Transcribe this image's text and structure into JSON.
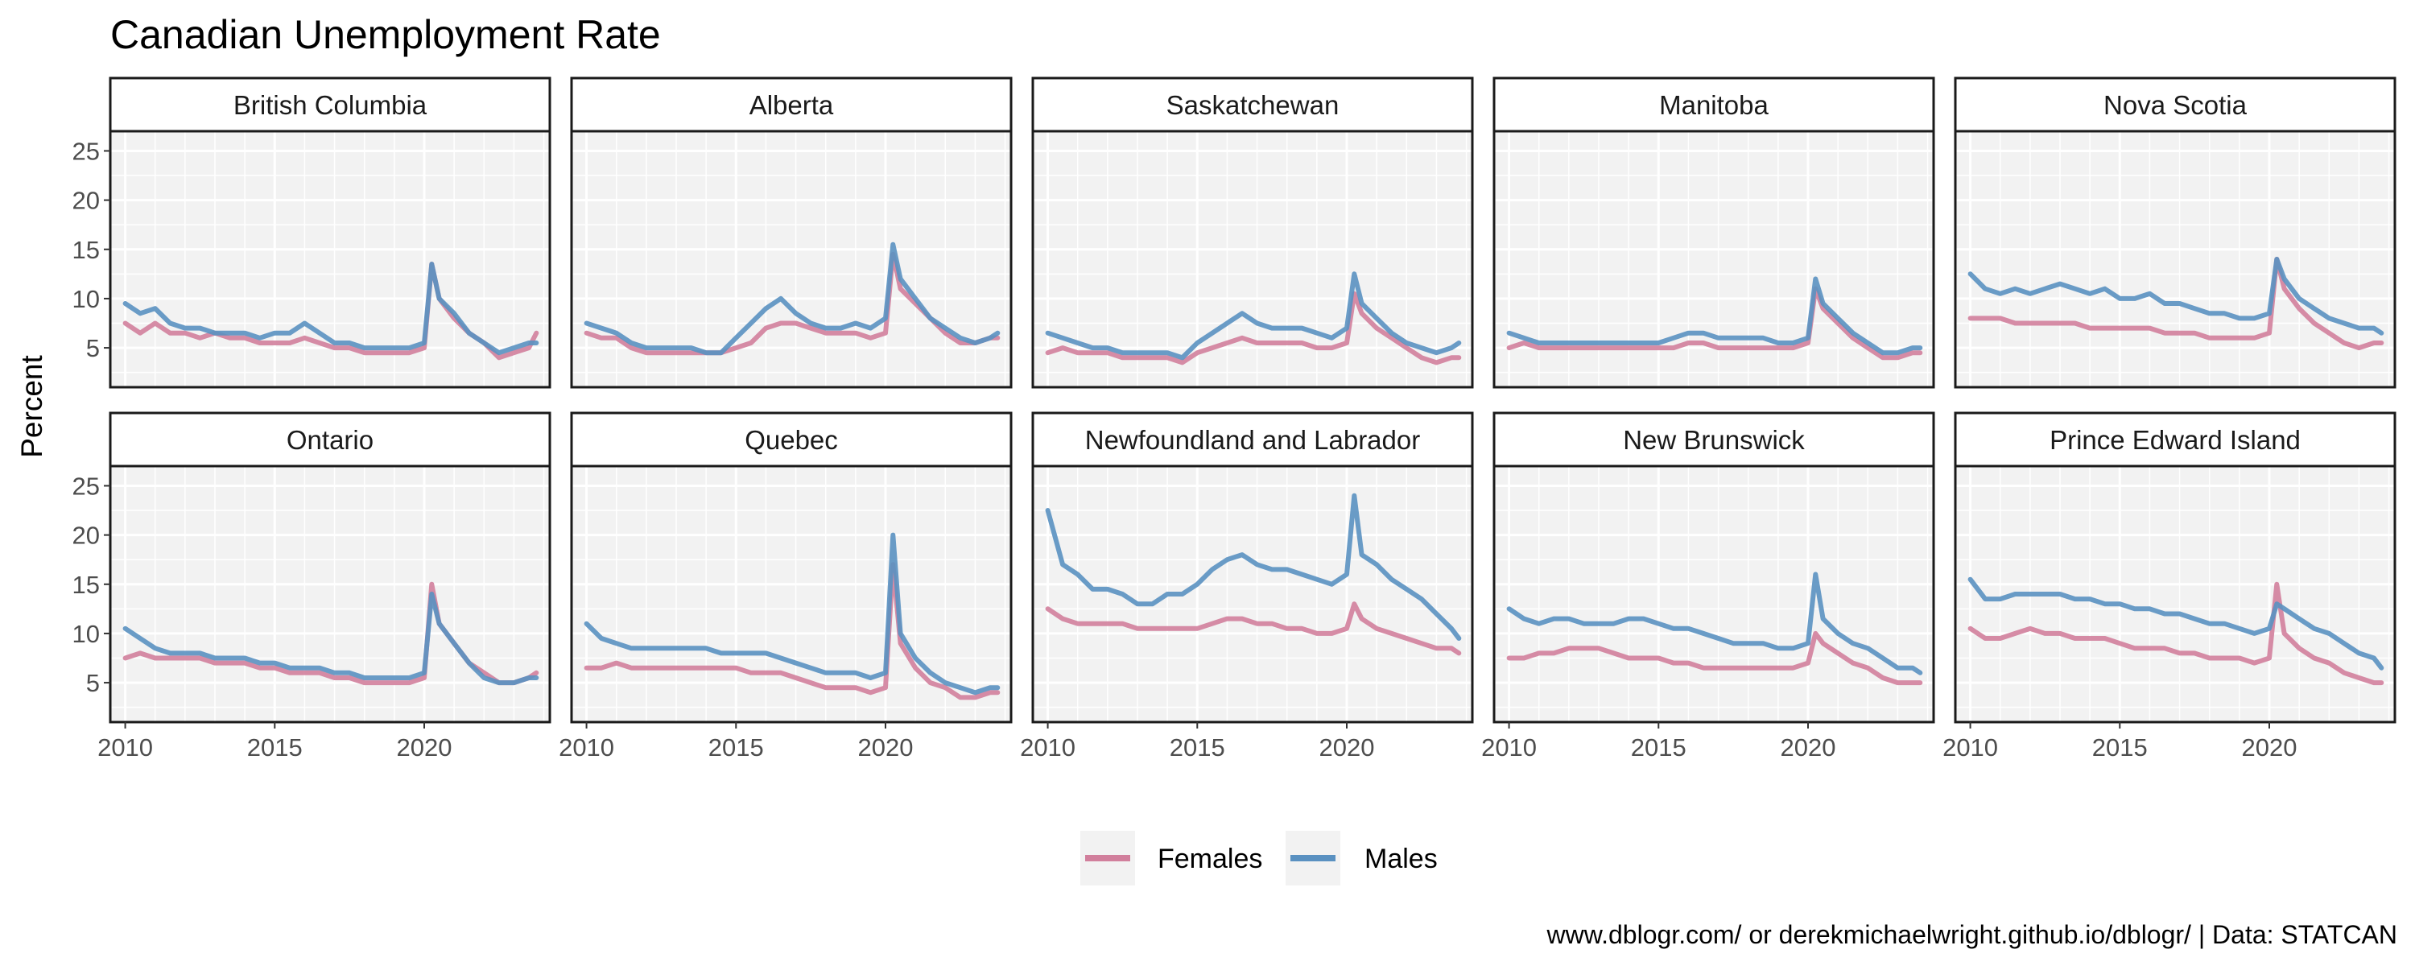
{
  "colors": {
    "females": "#d17f9c",
    "males": "#5a91c1",
    "panel_bg": "#f2f2f2",
    "grid": "#ffffff",
    "border": "#1a1a1a",
    "legend_key_bg": "#f2f2f2"
  },
  "chart_data": {
    "type": "line",
    "title": "Canadian Unemployment Rate",
    "ylabel": "Percent",
    "xlabel": "",
    "caption": "www.dblogr.com/ or derekmichaelwright.github.io/dblogr/ | Data: STATCAN",
    "x_range": [
      2009.5,
      2024.2
    ],
    "ylim": [
      1,
      27
    ],
    "x_ticks": [
      2010,
      2015,
      2020
    ],
    "x_tick_labels": [
      "2010",
      "2015",
      "2020"
    ],
    "y_ticks": [
      5,
      10,
      15,
      20,
      25
    ],
    "y_tick_labels": [
      "5",
      "10",
      "15",
      "20",
      "25"
    ],
    "grid": true,
    "legend_position": "bottom",
    "legend": [
      "Females",
      "Males"
    ],
    "x": [
      2010.0,
      2010.5,
      2011.0,
      2011.5,
      2012.0,
      2012.5,
      2013.0,
      2013.5,
      2014.0,
      2014.5,
      2015.0,
      2015.5,
      2016.0,
      2016.5,
      2017.0,
      2017.5,
      2018.0,
      2018.5,
      2019.0,
      2019.5,
      2020.0,
      2020.25,
      2020.5,
      2021.0,
      2021.5,
      2022.0,
      2022.5,
      2023.0,
      2023.5,
      2023.75
    ],
    "panels": [
      {
        "name": "British Columbia",
        "series": [
          {
            "name": "Females",
            "values": [
              7.5,
              6.5,
              7.5,
              6.5,
              6.5,
              6.0,
              6.5,
              6.0,
              6.0,
              5.5,
              5.5,
              5.5,
              6.0,
              5.5,
              5.0,
              5.0,
              4.5,
              4.5,
              4.5,
              4.5,
              5.0,
              13.5,
              10.0,
              8.0,
              6.5,
              5.5,
              4.0,
              4.5,
              5.0,
              6.5
            ]
          },
          {
            "name": "Males",
            "values": [
              9.5,
              8.5,
              9.0,
              7.5,
              7.0,
              7.0,
              6.5,
              6.5,
              6.5,
              6.0,
              6.5,
              6.5,
              7.5,
              6.5,
              5.5,
              5.5,
              5.0,
              5.0,
              5.0,
              5.0,
              5.5,
              13.5,
              10.0,
              8.5,
              6.5,
              5.5,
              4.5,
              5.0,
              5.5,
              5.5
            ]
          }
        ]
      },
      {
        "name": "Alberta",
        "series": [
          {
            "name": "Females",
            "values": [
              6.5,
              6.0,
              6.0,
              5.0,
              4.5,
              4.5,
              4.5,
              4.5,
              4.5,
              4.5,
              5.0,
              5.5,
              7.0,
              7.5,
              7.5,
              7.0,
              6.5,
              6.5,
              6.5,
              6.0,
              6.5,
              14.5,
              11.0,
              9.5,
              8.0,
              6.5,
              5.5,
              5.5,
              6.0,
              6.0
            ]
          },
          {
            "name": "Males",
            "values": [
              7.5,
              7.0,
              6.5,
              5.5,
              5.0,
              5.0,
              5.0,
              5.0,
              4.5,
              4.5,
              6.0,
              7.5,
              9.0,
              10.0,
              8.5,
              7.5,
              7.0,
              7.0,
              7.5,
              7.0,
              8.0,
              15.5,
              12.0,
              10.0,
              8.0,
              7.0,
              6.0,
              5.5,
              6.0,
              6.5
            ]
          }
        ]
      },
      {
        "name": "Saskatchewan",
        "series": [
          {
            "name": "Females",
            "values": [
              4.5,
              5.0,
              4.5,
              4.5,
              4.5,
              4.0,
              4.0,
              4.0,
              4.0,
              3.5,
              4.5,
              5.0,
              5.5,
              6.0,
              5.5,
              5.5,
              5.5,
              5.5,
              5.0,
              5.0,
              5.5,
              10.5,
              8.5,
              7.0,
              6.0,
              5.0,
              4.0,
              3.5,
              4.0,
              4.0
            ]
          },
          {
            "name": "Males",
            "values": [
              6.5,
              6.0,
              5.5,
              5.0,
              5.0,
              4.5,
              4.5,
              4.5,
              4.5,
              4.0,
              5.5,
              6.5,
              7.5,
              8.5,
              7.5,
              7.0,
              7.0,
              7.0,
              6.5,
              6.0,
              7.0,
              12.5,
              9.5,
              8.0,
              6.5,
              5.5,
              5.0,
              4.5,
              5.0,
              5.5
            ]
          }
        ]
      },
      {
        "name": "Manitoba",
        "series": [
          {
            "name": "Females",
            "values": [
              5.0,
              5.5,
              5.0,
              5.0,
              5.0,
              5.0,
              5.0,
              5.0,
              5.0,
              5.0,
              5.0,
              5.0,
              5.5,
              5.5,
              5.0,
              5.0,
              5.0,
              5.0,
              5.0,
              5.0,
              5.5,
              11.0,
              9.0,
              7.5,
              6.0,
              5.0,
              4.0,
              4.0,
              4.5,
              4.5
            ]
          },
          {
            "name": "Males",
            "values": [
              6.5,
              6.0,
              5.5,
              5.5,
              5.5,
              5.5,
              5.5,
              5.5,
              5.5,
              5.5,
              5.5,
              6.0,
              6.5,
              6.5,
              6.0,
              6.0,
              6.0,
              6.0,
              5.5,
              5.5,
              6.0,
              12.0,
              9.5,
              8.0,
              6.5,
              5.5,
              4.5,
              4.5,
              5.0,
              5.0
            ]
          }
        ]
      },
      {
        "name": "Nova Scotia",
        "series": [
          {
            "name": "Females",
            "values": [
              8.0,
              8.0,
              8.0,
              7.5,
              7.5,
              7.5,
              7.5,
              7.5,
              7.0,
              7.0,
              7.0,
              7.0,
              7.0,
              6.5,
              6.5,
              6.5,
              6.0,
              6.0,
              6.0,
              6.0,
              6.5,
              14.0,
              11.0,
              9.0,
              7.5,
              6.5,
              5.5,
              5.0,
              5.5,
              5.5
            ]
          },
          {
            "name": "Males",
            "values": [
              12.5,
              11.0,
              10.5,
              11.0,
              10.5,
              11.0,
              11.5,
              11.0,
              10.5,
              11.0,
              10.0,
              10.0,
              10.5,
              9.5,
              9.5,
              9.0,
              8.5,
              8.5,
              8.0,
              8.0,
              8.5,
              14.0,
              12.0,
              10.0,
              9.0,
              8.0,
              7.5,
              7.0,
              7.0,
              6.5
            ]
          }
        ]
      },
      {
        "name": "Ontario",
        "series": [
          {
            "name": "Females",
            "values": [
              7.5,
              8.0,
              7.5,
              7.5,
              7.5,
              7.5,
              7.0,
              7.0,
              7.0,
              6.5,
              6.5,
              6.0,
              6.0,
              6.0,
              5.5,
              5.5,
              5.0,
              5.0,
              5.0,
              5.0,
              5.5,
              15.0,
              11.0,
              9.0,
              7.0,
              6.0,
              5.0,
              5.0,
              5.5,
              6.0
            ]
          },
          {
            "name": "Males",
            "values": [
              10.5,
              9.5,
              8.5,
              8.0,
              8.0,
              8.0,
              7.5,
              7.5,
              7.5,
              7.0,
              7.0,
              6.5,
              6.5,
              6.5,
              6.0,
              6.0,
              5.5,
              5.5,
              5.5,
              5.5,
              6.0,
              14.0,
              11.0,
              9.0,
              7.0,
              5.5,
              5.0,
              5.0,
              5.5,
              5.5
            ]
          }
        ]
      },
      {
        "name": "Quebec",
        "series": [
          {
            "name": "Females",
            "values": [
              6.5,
              6.5,
              7.0,
              6.5,
              6.5,
              6.5,
              6.5,
              6.5,
              6.5,
              6.5,
              6.5,
              6.0,
              6.0,
              6.0,
              5.5,
              5.0,
              4.5,
              4.5,
              4.5,
              4.0,
              4.5,
              17.0,
              9.0,
              6.5,
              5.0,
              4.5,
              3.5,
              3.5,
              4.0,
              4.0
            ]
          },
          {
            "name": "Males",
            "values": [
              11.0,
              9.5,
              9.0,
              8.5,
              8.5,
              8.5,
              8.5,
              8.5,
              8.5,
              8.0,
              8.0,
              8.0,
              8.0,
              7.5,
              7.0,
              6.5,
              6.0,
              6.0,
              6.0,
              5.5,
              6.0,
              20.0,
              10.0,
              7.5,
              6.0,
              5.0,
              4.5,
              4.0,
              4.5,
              4.5
            ]
          }
        ]
      },
      {
        "name": "Newfoundland and Labrador",
        "series": [
          {
            "name": "Females",
            "values": [
              12.5,
              11.5,
              11.0,
              11.0,
              11.0,
              11.0,
              10.5,
              10.5,
              10.5,
              10.5,
              10.5,
              11.0,
              11.5,
              11.5,
              11.0,
              11.0,
              10.5,
              10.5,
              10.0,
              10.0,
              10.5,
              13.0,
              11.5,
              10.5,
              10.0,
              9.5,
              9.0,
              8.5,
              8.5,
              8.0
            ]
          },
          {
            "name": "Males",
            "values": [
              22.5,
              17.0,
              16.0,
              14.5,
              14.5,
              14.0,
              13.0,
              13.0,
              14.0,
              14.0,
              15.0,
              16.5,
              17.5,
              18.0,
              17.0,
              16.5,
              16.5,
              16.0,
              15.5,
              15.0,
              16.0,
              24.0,
              18.0,
              17.0,
              15.5,
              14.5,
              13.5,
              12.0,
              10.5,
              9.5
            ]
          }
        ]
      },
      {
        "name": "New Brunswick",
        "series": [
          {
            "name": "Females",
            "values": [
              7.5,
              7.5,
              8.0,
              8.0,
              8.5,
              8.5,
              8.5,
              8.0,
              7.5,
              7.5,
              7.5,
              7.0,
              7.0,
              6.5,
              6.5,
              6.5,
              6.5,
              6.5,
              6.5,
              6.5,
              7.0,
              10.0,
              9.0,
              8.0,
              7.0,
              6.5,
              5.5,
              5.0,
              5.0,
              5.0
            ]
          },
          {
            "name": "Males",
            "values": [
              12.5,
              11.5,
              11.0,
              11.5,
              11.5,
              11.0,
              11.0,
              11.0,
              11.5,
              11.5,
              11.0,
              10.5,
              10.5,
              10.0,
              9.5,
              9.0,
              9.0,
              9.0,
              8.5,
              8.5,
              9.0,
              16.0,
              11.5,
              10.0,
              9.0,
              8.5,
              7.5,
              6.5,
              6.5,
              6.0
            ]
          }
        ]
      },
      {
        "name": "Prince Edward Island",
        "series": [
          {
            "name": "Females",
            "values": [
              10.5,
              9.5,
              9.5,
              10.0,
              10.5,
              10.0,
              10.0,
              9.5,
              9.5,
              9.5,
              9.0,
              8.5,
              8.5,
              8.5,
              8.0,
              8.0,
              7.5,
              7.5,
              7.5,
              7.0,
              7.5,
              15.0,
              10.0,
              8.5,
              7.5,
              7.0,
              6.0,
              5.5,
              5.0,
              5.0
            ]
          },
          {
            "name": "Males",
            "values": [
              15.5,
              13.5,
              13.5,
              14.0,
              14.0,
              14.0,
              14.0,
              13.5,
              13.5,
              13.0,
              13.0,
              12.5,
              12.5,
              12.0,
              12.0,
              11.5,
              11.0,
              11.0,
              10.5,
              10.0,
              10.5,
              13.0,
              12.5,
              11.5,
              10.5,
              10.0,
              9.0,
              8.0,
              7.5,
              6.5
            ]
          }
        ]
      }
    ]
  }
}
